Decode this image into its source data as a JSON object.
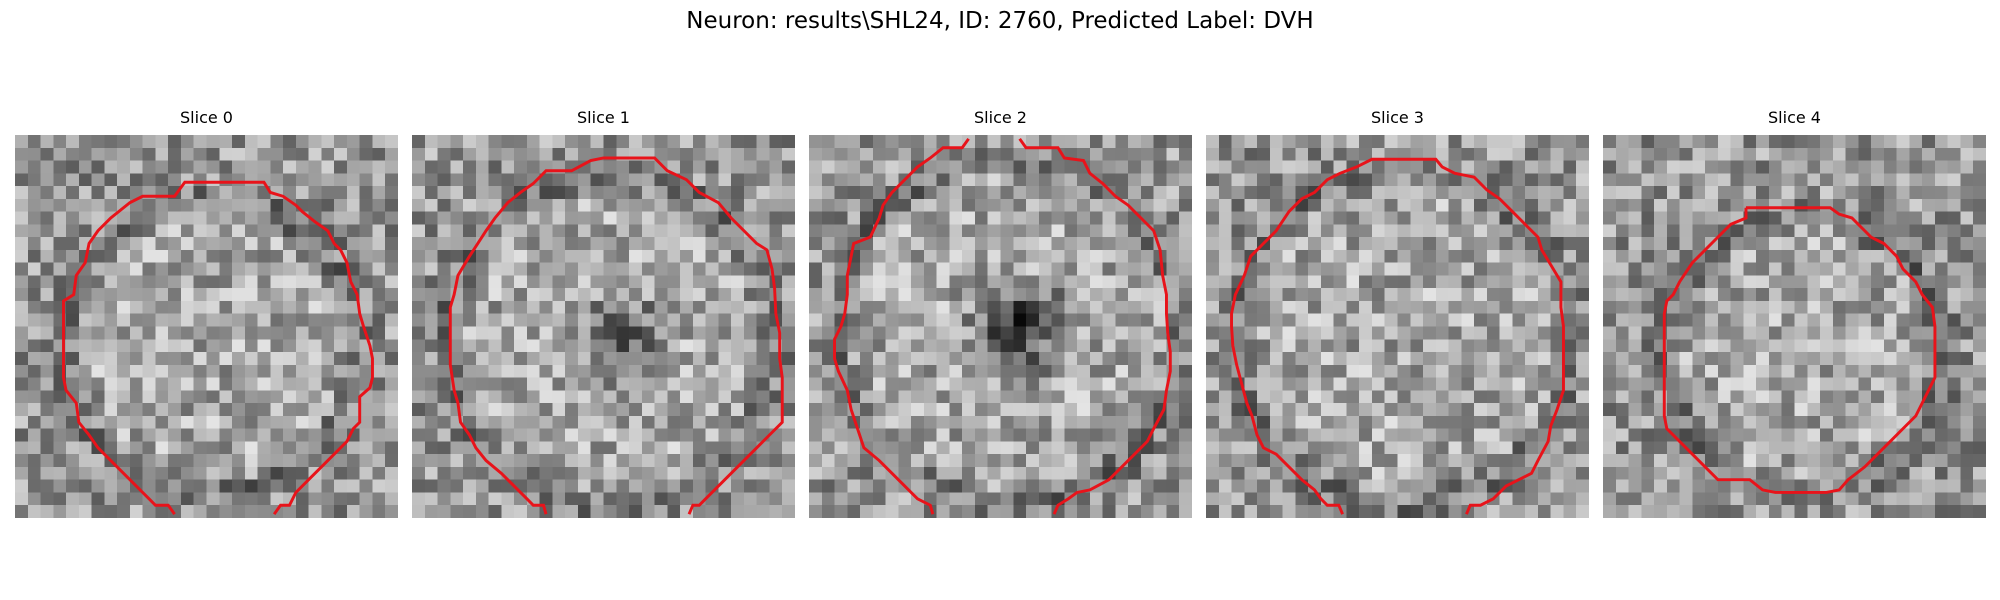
{
  "figure": {
    "title": "Neuron: results\\SHL24, ID: 2760, Predicted Label: DVH"
  },
  "colors": {
    "contour": "#e8131a",
    "background": "#ffffff"
  },
  "panels": [
    {
      "label": "Slice 0"
    },
    {
      "label": "Slice 1"
    },
    {
      "label": "Slice 2"
    },
    {
      "label": "Slice 3"
    },
    {
      "label": "Slice 4"
    }
  ]
}
